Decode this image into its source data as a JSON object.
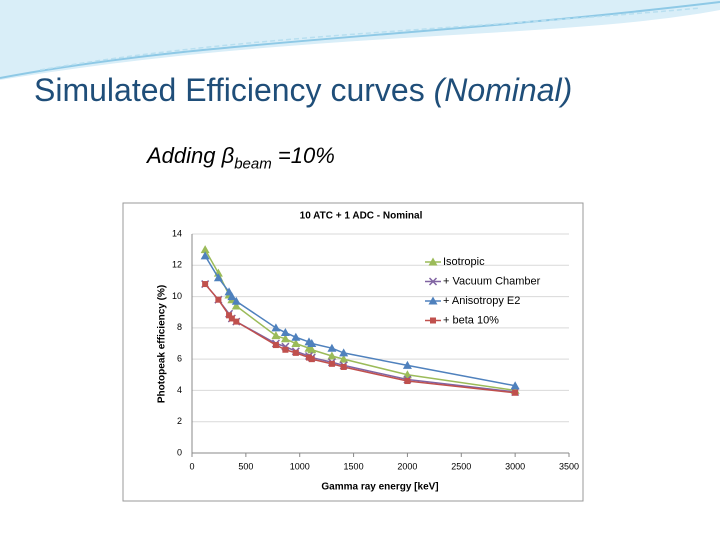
{
  "slide": {
    "title": "Simulated Efficiency curves",
    "title_italic": "(Nominal)",
    "subtitle_prefix": "Adding",
    "symbol": "β",
    "subscript": "beam",
    "subtitle_suffix": "=10%"
  },
  "chart_data": {
    "type": "line",
    "title": "10 ATC + 1 ADC - Nominal",
    "x_label": "Gamma ray energy [keV]",
    "y_label": "Photopeak efficiency (%)",
    "x": [
      122,
      245,
      344,
      370,
      411,
      779,
      867,
      964,
      1086,
      1112,
      1299,
      1408,
      2000,
      3000
    ],
    "series": [
      {
        "name": "Isotropic",
        "color": "#9bbb59",
        "marker": "triangle",
        "values": [
          13.0,
          11.5,
          10.1,
          9.8,
          9.4,
          7.5,
          7.3,
          7.0,
          6.7,
          6.6,
          6.2,
          6.0,
          5.0,
          4.0
        ]
      },
      {
        "name": "+ Vacuum Chamber",
        "color": "#8064a2",
        "marker": "x",
        "values": [
          10.8,
          9.8,
          8.9,
          8.6,
          8.4,
          7.0,
          6.8,
          6.5,
          6.2,
          6.1,
          5.8,
          5.6,
          4.7,
          3.9
        ]
      },
      {
        "name": "+ Anisotropy E2",
        "color": "#4f81bd",
        "marker": "triangle",
        "values": [
          12.6,
          11.2,
          10.3,
          10.0,
          9.7,
          8.0,
          7.7,
          7.4,
          7.1,
          7.0,
          6.7,
          6.4,
          5.6,
          4.3
        ]
      },
      {
        "name": "+ beta 10%",
        "color": "#c0504d",
        "marker": "square",
        "values": [
          10.8,
          9.8,
          8.8,
          8.6,
          8.4,
          6.9,
          6.6,
          6.4,
          6.1,
          6.0,
          5.7,
          5.5,
          4.6,
          3.85
        ]
      }
    ],
    "xlim": [
      0,
      3500
    ],
    "xticks": [
      0,
      500,
      1000,
      1500,
      2000,
      2500,
      3000,
      3500
    ],
    "ylim": [
      0,
      14
    ],
    "yticks": [
      0,
      2,
      4,
      6,
      8,
      10,
      12,
      14
    ],
    "grid": true,
    "legend": "right"
  }
}
